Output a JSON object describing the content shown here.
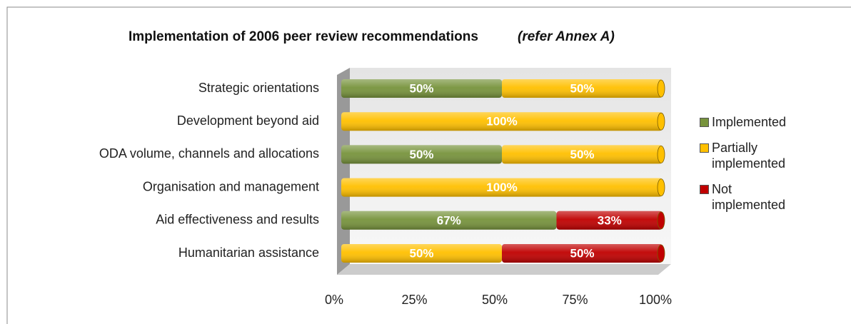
{
  "chart_data": {
    "type": "bar",
    "orientation": "horizontal",
    "stacked": true,
    "title": "Implementation of  2006 peer review recommendations",
    "title_note": "(refer Annex A)",
    "categories": [
      "Strategic orientations",
      "Development beyond aid",
      "ODA volume, channels and allocations",
      "Organisation and management",
      "Aid effectiveness  and results",
      "Humanitarian assistance"
    ],
    "series": [
      {
        "name": "Implemented",
        "color": "#77933c",
        "values": [
          50,
          0,
          50,
          0,
          67,
          0
        ],
        "value_labels": [
          "50%",
          null,
          "50%",
          null,
          "67%",
          null
        ]
      },
      {
        "name": "Partially implemented",
        "color": "#ffc000",
        "values": [
          50,
          100,
          50,
          100,
          0,
          50
        ],
        "value_labels": [
          "50%",
          "100%",
          "50%",
          "100%",
          null,
          "50%"
        ]
      },
      {
        "name": "Not implemented",
        "color": "#c00000",
        "values": [
          0,
          0,
          0,
          0,
          33,
          50
        ],
        "value_labels": [
          null,
          null,
          null,
          null,
          "33%",
          "50%"
        ]
      }
    ],
    "xlim": [
      0,
      100
    ],
    "xticks": [
      {
        "value": 0,
        "label": "0%"
      },
      {
        "value": 25,
        "label": "25%"
      },
      {
        "value": 50,
        "label": "50%"
      },
      {
        "value": 75,
        "label": "75%"
      },
      {
        "value": 100,
        "label": "100%"
      }
    ],
    "legend": "right"
  }
}
